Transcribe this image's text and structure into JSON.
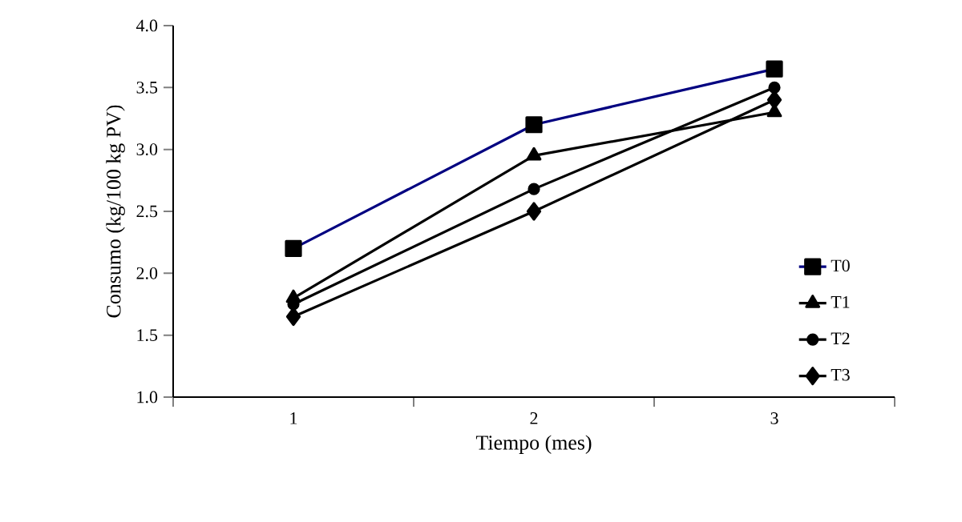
{
  "chart_data": {
    "type": "line",
    "xlabel": "Tiempo (mes)",
    "ylabel": "Consumo (kg/100 kg PV)",
    "categories": [
      "1",
      "2",
      "3"
    ],
    "ylim": [
      1.0,
      4.0
    ],
    "yticks": [
      {
        "value": 1.0,
        "label": "1.0"
      },
      {
        "value": 1.5,
        "label": "1.5"
      },
      {
        "value": 2.0,
        "label": "2.0"
      },
      {
        "value": 2.5,
        "label": "2.5"
      },
      {
        "value": 3.0,
        "label": "3.0"
      },
      {
        "value": 3.5,
        "label": "3.5"
      },
      {
        "value": 4.0,
        "label": "4.0"
      }
    ],
    "grid": false,
    "legend": "bottom right",
    "series": [
      {
        "name": "T0",
        "color": "#000080",
        "marker": "square",
        "values": [
          2.2,
          3.2,
          3.65
        ]
      },
      {
        "name": "T1",
        "color": "#000000",
        "marker": "triangle",
        "values": [
          1.8,
          2.95,
          3.3
        ]
      },
      {
        "name": "T2",
        "color": "#000000",
        "marker": "circle",
        "values": [
          1.75,
          2.68,
          3.5
        ]
      },
      {
        "name": "T3",
        "color": "#000000",
        "marker": "diamond",
        "values": [
          1.65,
          2.5,
          3.4
        ]
      }
    ]
  }
}
